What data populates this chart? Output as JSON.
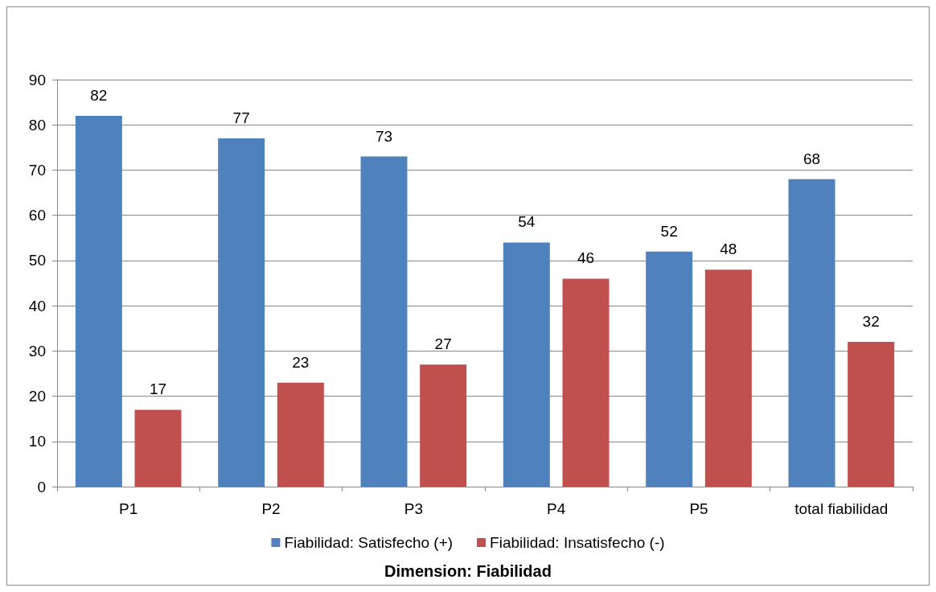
{
  "chart_data": {
    "type": "bar",
    "title": "Dimension: Fiabilidad",
    "categories": [
      "P1",
      "P2",
      "P3",
      "P4",
      "P5",
      "total fiabilidad"
    ],
    "series": [
      {
        "name": "Fiabilidad: Satisfecho (+)",
        "color": "#4f81bd",
        "values": [
          82,
          77,
          73,
          54,
          52,
          68
        ]
      },
      {
        "name": "Fiabilidad: Insatisfecho (-)",
        "color": "#c0504d",
        "values": [
          17,
          23,
          27,
          46,
          48,
          32
        ]
      }
    ],
    "ylim": [
      0,
      90
    ],
    "yticks": [
      0,
      10,
      20,
      30,
      40,
      50,
      60,
      70,
      80,
      90
    ],
    "grid": "y",
    "legend": "bottom",
    "data_labels": true
  }
}
